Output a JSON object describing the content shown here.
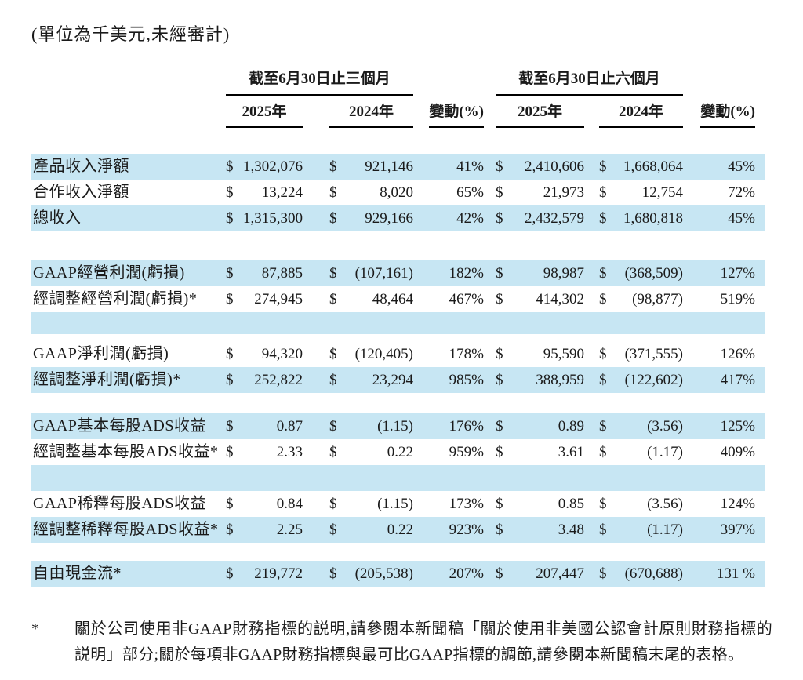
{
  "title": "(單位為千美元,未經審計)",
  "colors": {
    "row_highlight": "#c7e6f3",
    "text": "#1a1a1a",
    "rule": "#000000"
  },
  "table": {
    "header": {
      "group_3m": "截至6月30日止三個月",
      "group_6m": "截至6月30日止六個月",
      "col_2025": "2025年",
      "col_2024": "2024年",
      "col_change": "變動(%)",
      "currency_symbol": "$"
    },
    "rows": [
      {
        "label": "產品收入淨額",
        "shade": "blue",
        "cells": {
          "q25": "1,302,076",
          "q24": "921,146",
          "qchg": "41%",
          "h25": "2,410,606",
          "h24": "1,668,064",
          "hchg": "45%"
        }
      },
      {
        "label": "合作收入淨額",
        "shade": "white",
        "sumline": true,
        "cells": {
          "q25": "13,224",
          "q24": "8,020",
          "qchg": "65%",
          "h25": "21,973",
          "h24": "12,754",
          "hchg": "72%"
        }
      },
      {
        "label": "總收入",
        "shade": "blue",
        "cells": {
          "q25": "1,315,300",
          "q24": "929,166",
          "qchg": "42%",
          "h25": "2,432,579",
          "h24": "1,680,818",
          "hchg": "45%"
        }
      },
      {
        "spacer": "white-lg"
      },
      {
        "label": "GAAP經營利潤(虧損)",
        "shade": "blue",
        "cells": {
          "q25": "87,885",
          "q24": "(107,161)",
          "qchg": "182%",
          "h25": "98,987",
          "h24": "(368,509)",
          "hchg": "127%"
        }
      },
      {
        "label": "經調整經營利潤(虧損)*",
        "shade": "white",
        "cells": {
          "q25": "274,945",
          "q24": "48,464",
          "qchg": "467%",
          "h25": "414,302",
          "h24": "(98,877)",
          "hchg": "519%"
        }
      },
      {
        "spacer": "blue-md"
      },
      {
        "spacer": "white-xs"
      },
      {
        "label": "GAAP淨利潤(虧損)",
        "shade": "white",
        "cells": {
          "q25": "94,320",
          "q24": "(120,405)",
          "qchg": "178%",
          "h25": "95,590",
          "h24": "(371,555)",
          "hchg": "126%"
        }
      },
      {
        "label": "經調整淨利潤(虧損)*",
        "shade": "blue",
        "cells": {
          "q25": "252,822",
          "q24": "23,294",
          "qchg": "985%",
          "h25": "388,959",
          "h24": "(122,602)",
          "hchg": "417%"
        }
      },
      {
        "spacer": "white-md"
      },
      {
        "label": "GAAP基本每股ADS收益",
        "shade": "blue",
        "cells": {
          "q25": "0.87",
          "q24": "(1.15)",
          "qchg": "176%",
          "h25": "0.89",
          "h24": "(3.56)",
          "hchg": "125%"
        }
      },
      {
        "label": "經調整基本每股ADS收益*",
        "shade": "white",
        "cells": {
          "q25": "2.33",
          "q24": "0.22",
          "qchg": "959%",
          "h25": "3.61",
          "h24": "(1.17)",
          "hchg": "409%"
        }
      },
      {
        "spacer": "blue-lg"
      },
      {
        "label": "GAAP稀釋每股ADS收益",
        "shade": "white",
        "cells": {
          "q25": "0.84",
          "q24": "(1.15)",
          "qchg": "173%",
          "h25": "0.85",
          "h24": "(3.56)",
          "hchg": "124%"
        }
      },
      {
        "label": "經調整稀釋每股ADS收益*",
        "shade": "blue",
        "cells": {
          "q25": "2.25",
          "q24": "0.22",
          "qchg": "923%",
          "h25": "3.48",
          "h24": "(1.17)",
          "hchg": "397%"
        }
      },
      {
        "spacer": "white-sm"
      },
      {
        "label": "自由現金流*",
        "shade": "blue",
        "cells": {
          "q25": "219,772",
          "q24": "(205,538)",
          "qchg": "207%",
          "h25": "207,447",
          "h24": "(670,688)",
          "hchg": "131 %"
        }
      }
    ]
  },
  "footnote": {
    "marker": "*",
    "text": "關於公司使用非GAAP財務指標的説明,請參閱本新聞稿「關於使用非美國公認會計原則財務指標的説明」部分;關於每項非GAAP財務指標與最可比GAAP指標的調節,請參閱本新聞稿末尾的表格。"
  }
}
